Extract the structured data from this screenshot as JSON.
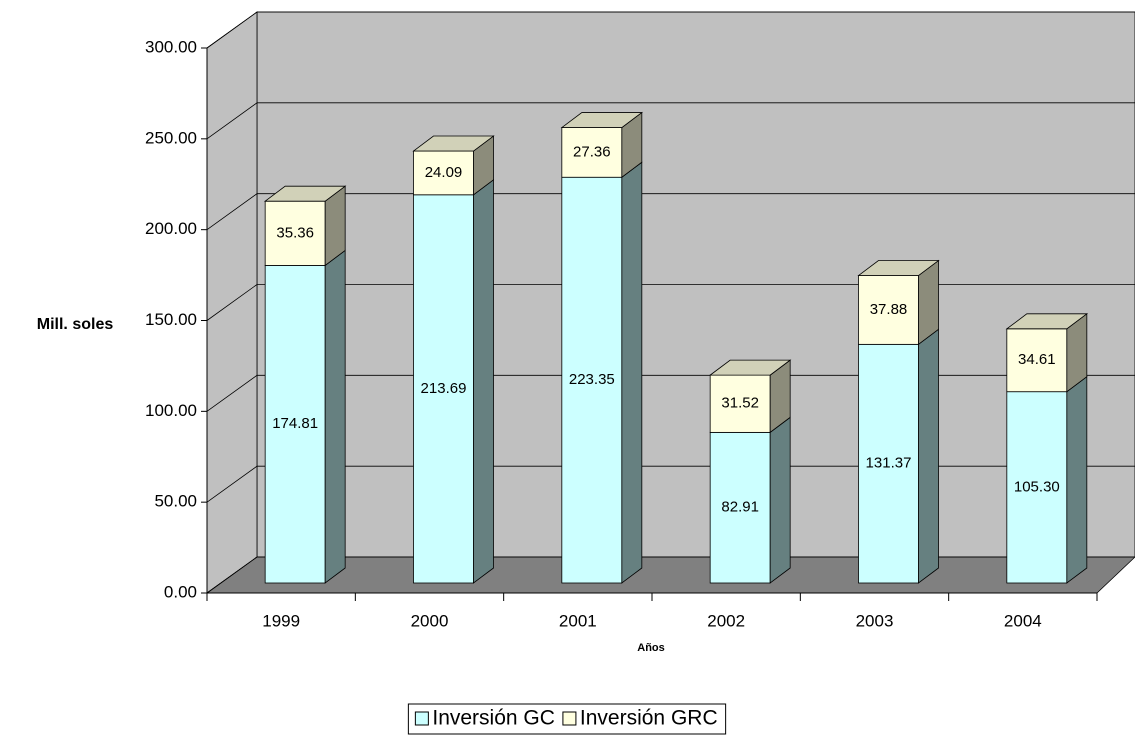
{
  "chart_data": {
    "type": "bar3d_stacked",
    "categories": [
      "1999",
      "2000",
      "2001",
      "2002",
      "2003",
      "2004"
    ],
    "series": [
      {
        "name": "Inversión GC",
        "color": "#ccffff",
        "values": [
          174.81,
          213.69,
          223.35,
          82.91,
          131.37,
          105.3
        ],
        "value_labels": [
          "174.81",
          "213.69",
          "223.35",
          "82.91",
          "131.37",
          "105.30"
        ]
      },
      {
        "name": "Inversión GRC",
        "color": "#ffffe0",
        "values": [
          35.36,
          24.09,
          27.36,
          31.52,
          37.88,
          34.61
        ],
        "value_labels": [
          "35.36",
          "24.09",
          "27.36",
          "31.52",
          "37.88",
          "34.61"
        ]
      }
    ],
    "xlabel": "Años",
    "ylabel": "Mill. soles",
    "ylim": [
      0,
      300
    ],
    "yticks": [
      {
        "value": 0,
        "label": "0.00"
      },
      {
        "value": 50,
        "label": "50.00"
      },
      {
        "value": 100,
        "label": "100.00"
      },
      {
        "value": 150,
        "label": "150.00"
      },
      {
        "value": 200,
        "label": "200.00"
      },
      {
        "value": 250,
        "label": "250.00"
      },
      {
        "value": 300,
        "label": "300.00"
      }
    ],
    "grid": true,
    "legend": "bottom"
  }
}
